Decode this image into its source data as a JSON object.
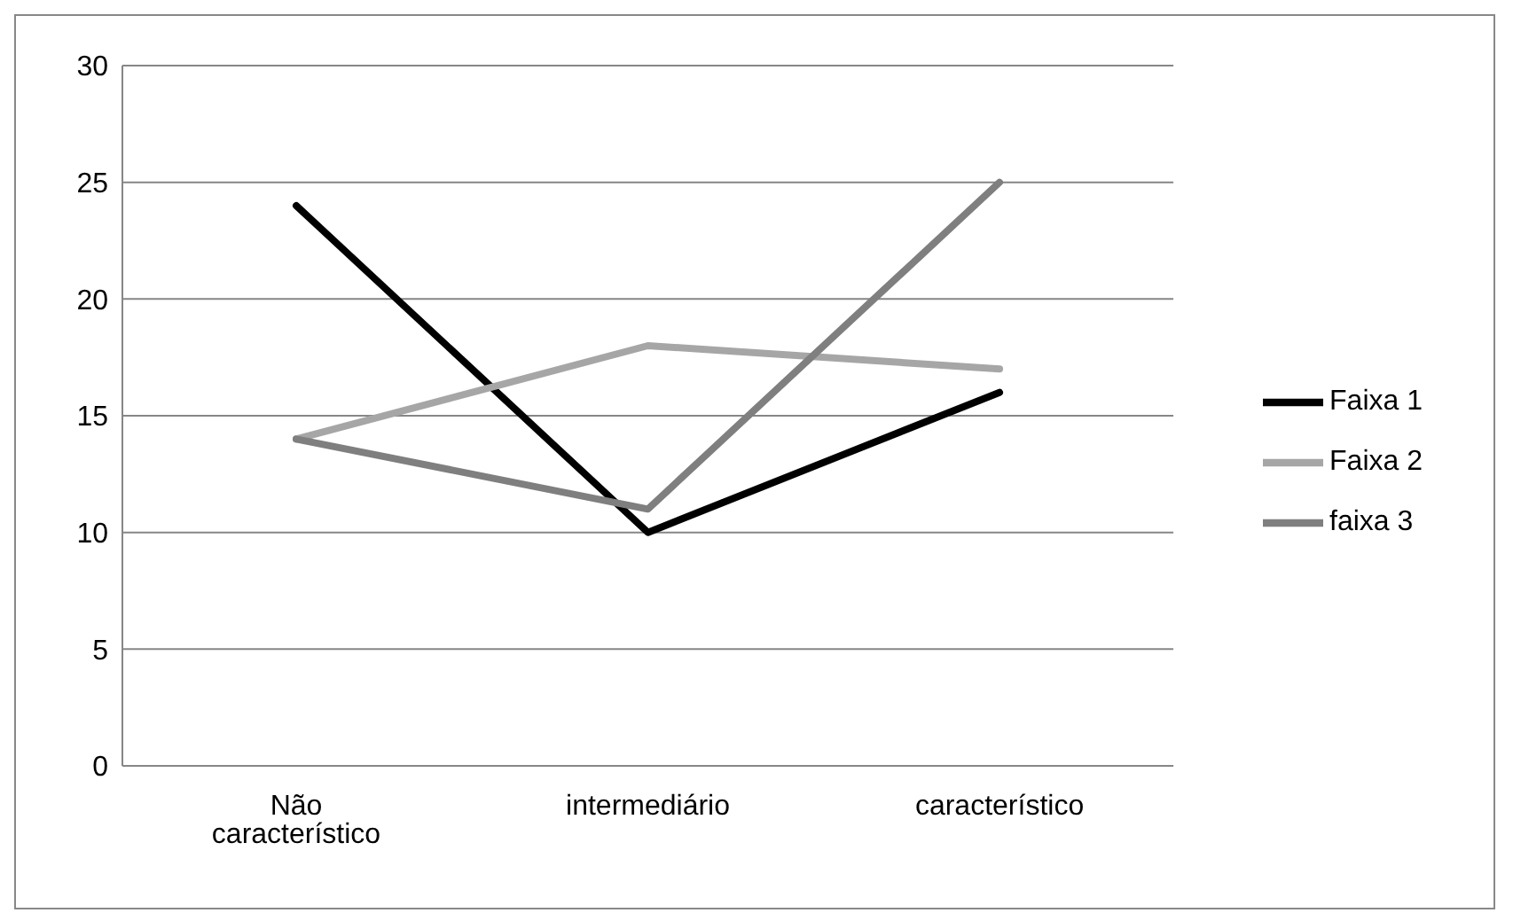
{
  "chart_data": {
    "type": "line",
    "categories": [
      "Não característico",
      "intermediário",
      "característico"
    ],
    "series": [
      {
        "name": "Faixa 1",
        "color": "#000000",
        "values": [
          24,
          10,
          16
        ]
      },
      {
        "name": "Faixa 2",
        "color": "#a6a6a6",
        "values": [
          14,
          18,
          17
        ]
      },
      {
        "name": "faixa 3",
        "color": "#7f7f7f",
        "values": [
          14,
          11,
          25
        ]
      }
    ],
    "ylim": [
      0,
      30
    ],
    "yticks": [
      0,
      5,
      10,
      15,
      20,
      25,
      30
    ],
    "grid": "y",
    "legend": "right",
    "marker": "none",
    "line_style": "solid"
  }
}
